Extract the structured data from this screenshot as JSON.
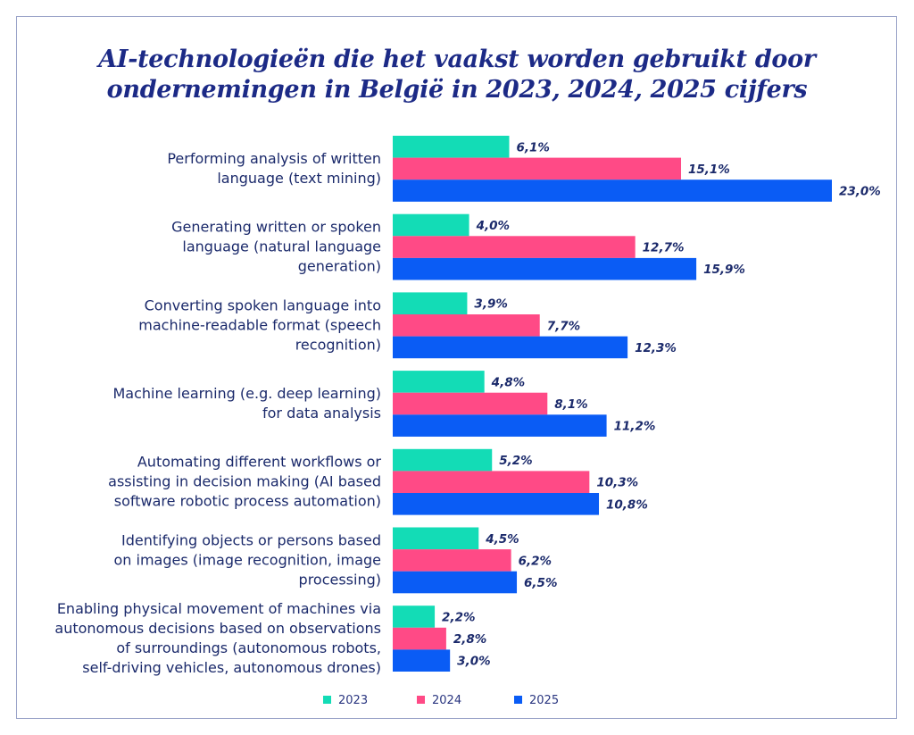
{
  "chart_data": {
    "type": "bar",
    "orientation": "horizontal",
    "title": "AI-technologieën die het vaakst worden gebruikt door ondernemingen in België in 2023, 2024, 2025 cijfers",
    "title_lines": [
      "AI-technologieën die het vaakst worden gebruikt door",
      "ondernemingen in België in 2023, 2024, 2025 cijfers"
    ],
    "xlim": [
      0,
      25
    ],
    "grid": false,
    "legend_position": "bottom",
    "categories": [
      [
        "Performing analysis of written",
        "language (text mining)"
      ],
      [
        "Generating written or spoken",
        "language (natural language",
        "generation)"
      ],
      [
        "Converting spoken language into",
        "machine-readable format (speech",
        "recognition)"
      ],
      [
        "Machine learning (e.g. deep learning)",
        "for data analysis"
      ],
      [
        "Automating different workflows or",
        "assisting in decision making (AI based",
        "software robotic process automation)"
      ],
      [
        "Identifying objects or persons based",
        "on images (image recognition, image",
        "processing)"
      ],
      [
        "Enabling physical movement of machines via",
        "autonomous decisions based on observations",
        "of surroundings (autonomous robots,",
        "self-driving vehicles, autonomous drones)"
      ]
    ],
    "series": [
      {
        "name": "2023",
        "color": "#13dcb6",
        "values": [
          6.1,
          4.0,
          3.9,
          4.8,
          5.2,
          4.5,
          2.2
        ],
        "labels": [
          "6,1%",
          "4,0%",
          "3,9%",
          "4,8%",
          "5,2%",
          "4,5%",
          "2,2%"
        ]
      },
      {
        "name": "2024",
        "color": "#ff4a86",
        "values": [
          15.1,
          12.7,
          7.7,
          8.1,
          10.3,
          6.2,
          2.8
        ],
        "labels": [
          "15,1%",
          "12,7%",
          "7,7%",
          "8,1%",
          "10,3%",
          "6,2%",
          "2,8%"
        ]
      },
      {
        "name": "2025",
        "color": "#0a5cf5",
        "values": [
          23.0,
          15.9,
          12.3,
          11.2,
          10.8,
          6.5,
          3.0
        ],
        "labels": [
          "23,0%",
          "15,9%",
          "12,3%",
          "11,2%",
          "10,8%",
          "6,5%",
          "3,0%"
        ]
      }
    ]
  }
}
